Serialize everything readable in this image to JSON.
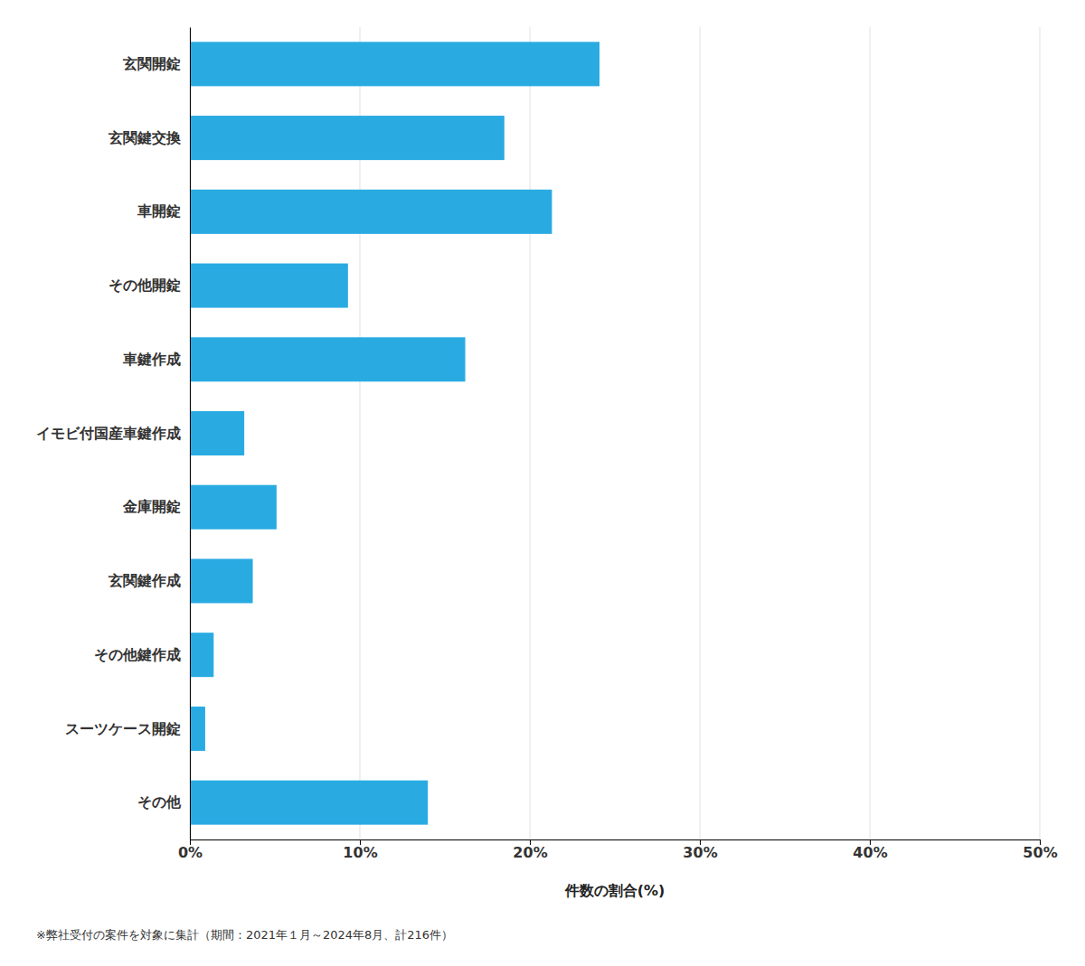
{
  "chart_data": {
    "type": "bar",
    "orientation": "horizontal",
    "categories": [
      "その他",
      "スーツケース開錠",
      "その他鍵作成",
      "玄関鍵作成",
      "金庫開錠",
      "イモビ付国産車鍵作成",
      "車鍵作成",
      "その他開錠",
      "車開錠",
      "玄関鍵交換",
      "玄関開錠"
    ],
    "values": [
      14.0,
      0.9,
      1.4,
      3.7,
      5.1,
      3.2,
      16.2,
      9.3,
      21.3,
      18.5,
      24.1
    ],
    "color": "#29ABE2",
    "xlabel": "件数の割合(%)",
    "xlim": [
      0,
      50
    ],
    "xticks": [
      {
        "value": 0,
        "label": "0%"
      },
      {
        "value": 10,
        "label": "10%"
      },
      {
        "value": 20,
        "label": "20%"
      },
      {
        "value": 30,
        "label": "30%"
      },
      {
        "value": 40,
        "label": "40%"
      },
      {
        "value": 50,
        "label": "50%"
      }
    ],
    "grid": true,
    "footnote": "※弊社受付の案件を対象に集計（期間：2021年１月～2024年8月、計216件）"
  }
}
